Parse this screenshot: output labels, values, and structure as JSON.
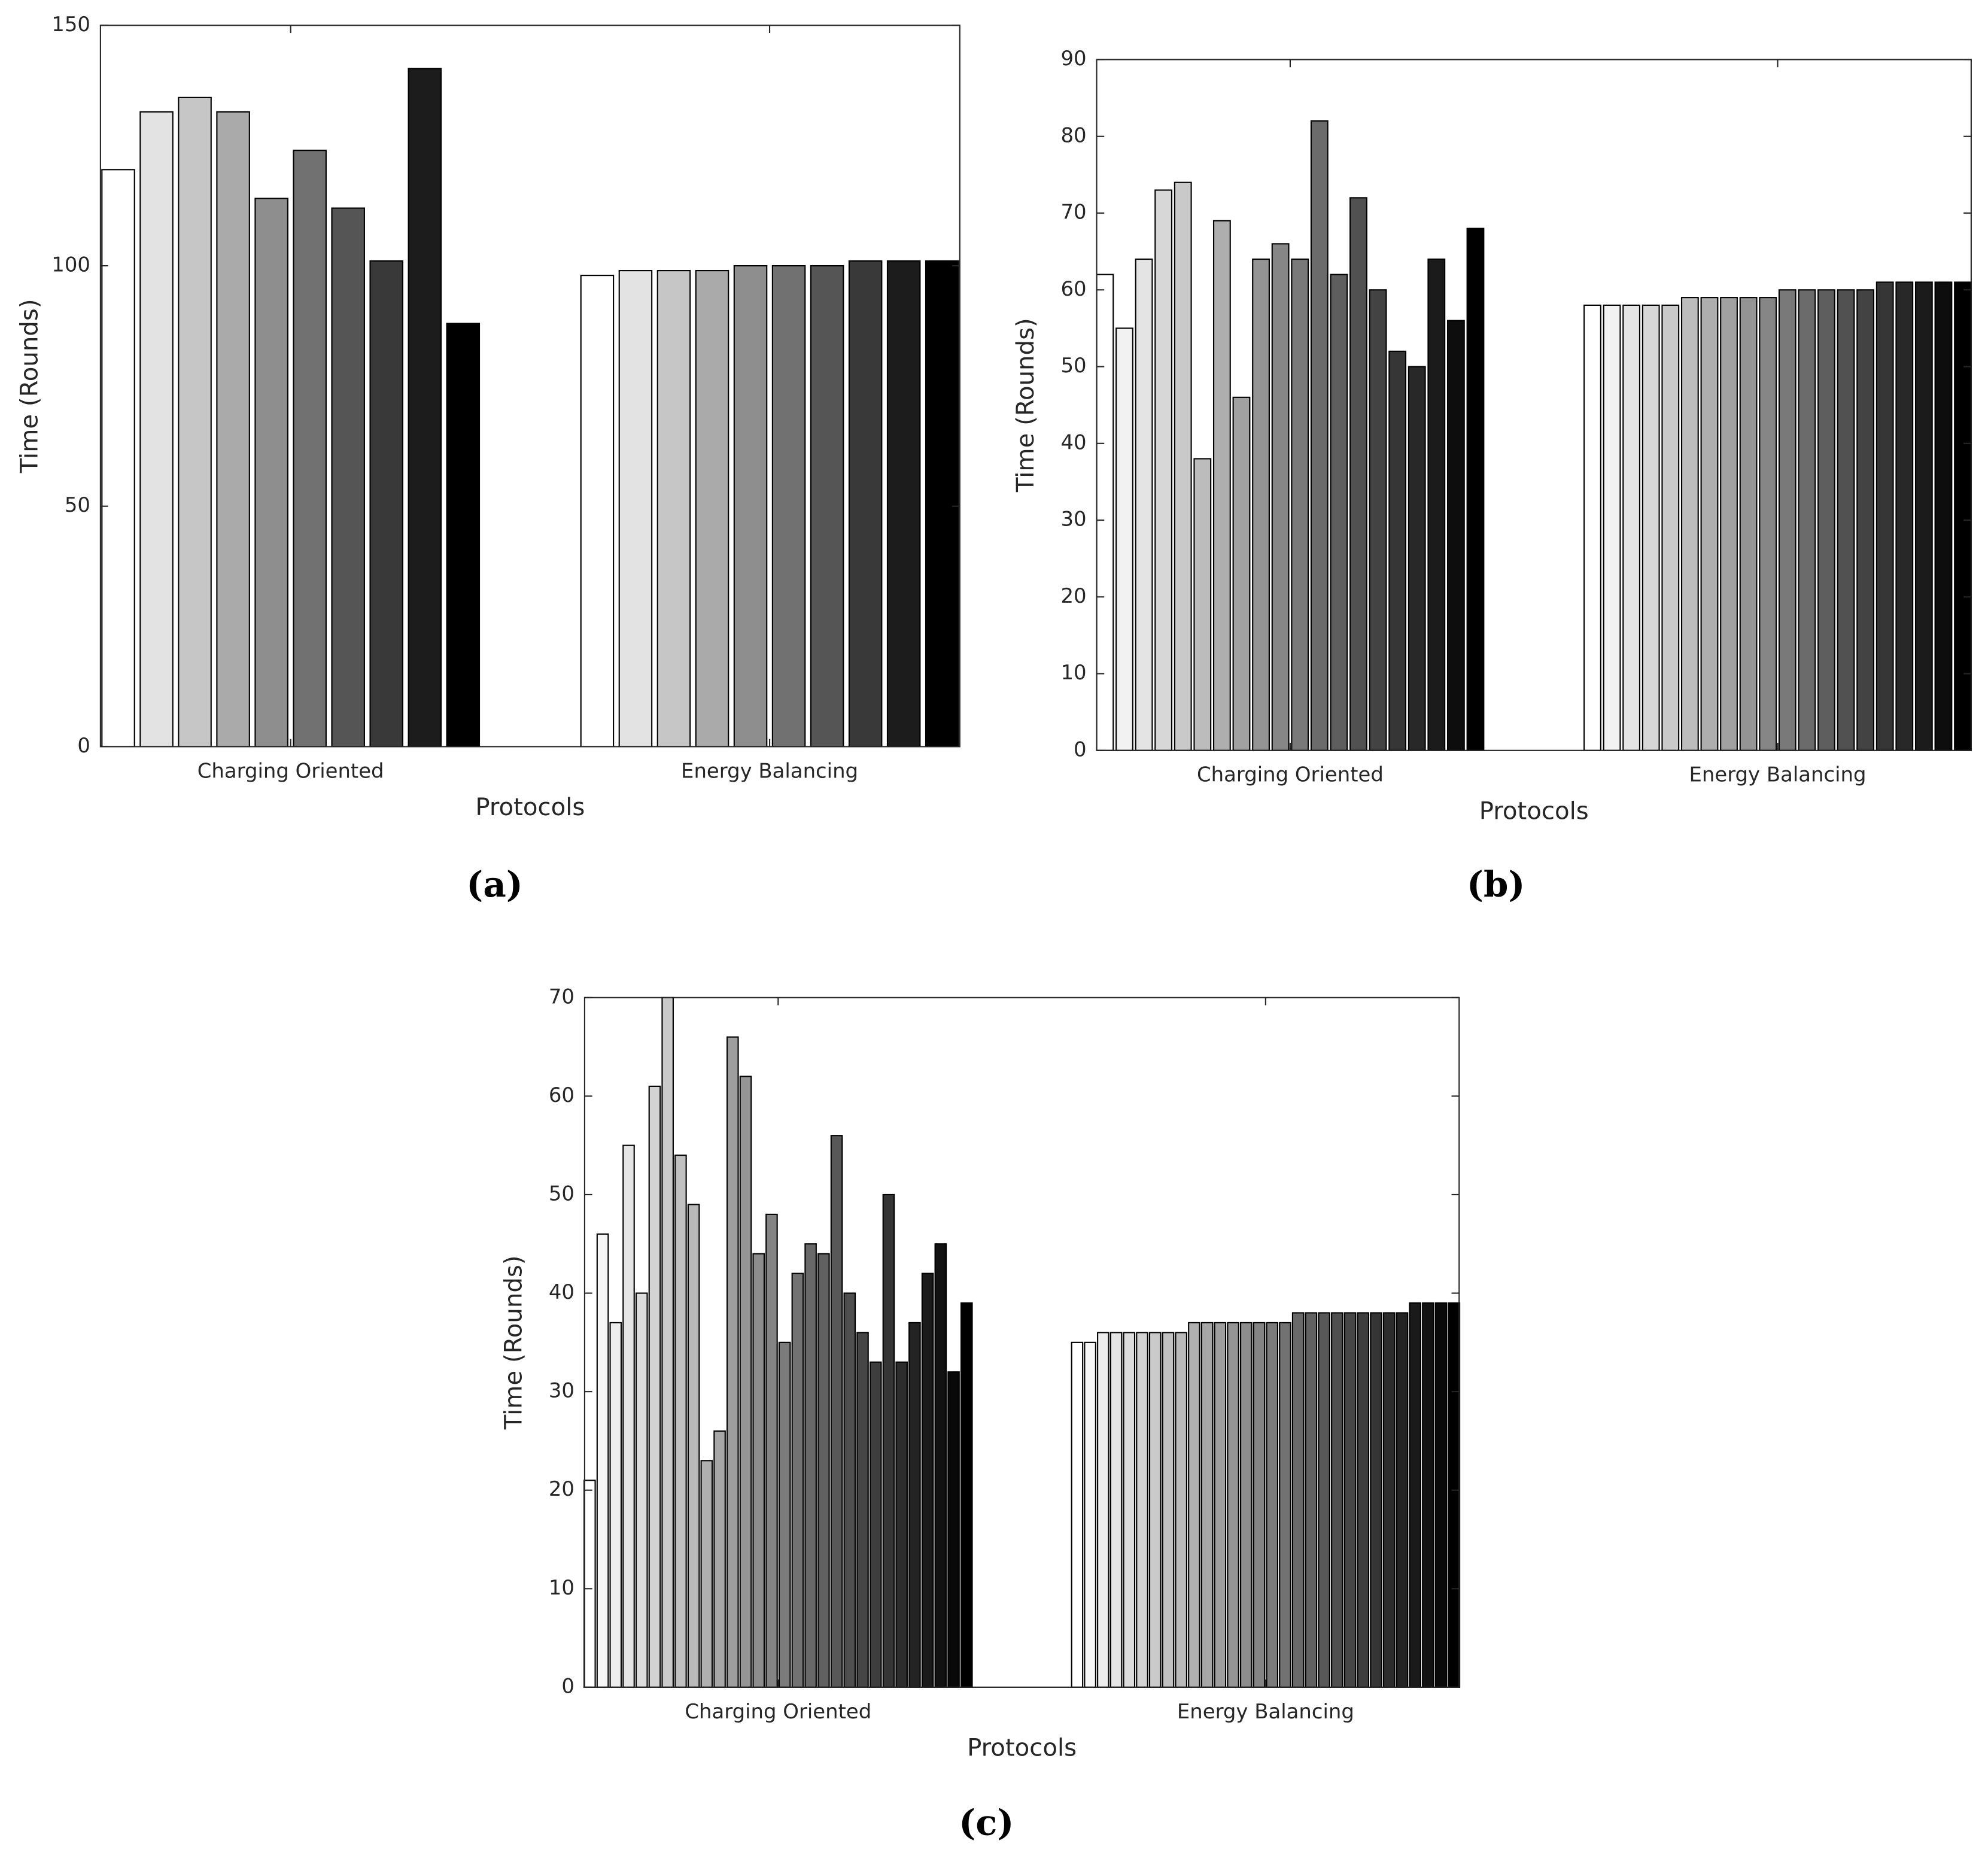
{
  "chart_data": [
    {
      "type": "bar",
      "caption": "(a)",
      "categories": [
        "Charging Oriented",
        "Energy Balancing"
      ],
      "xlabel": "Protocols",
      "ylabel": "Time (Rounds)",
      "ylim": [
        0,
        150
      ],
      "yticks": [
        0,
        50,
        100,
        150
      ],
      "series": [
        {
          "color": "#ffffff",
          "values": [
            120,
            98
          ]
        },
        {
          "color": "#e3e3e3",
          "values": [
            132,
            99
          ]
        },
        {
          "color": "#c6c6c6",
          "values": [
            135,
            99
          ]
        },
        {
          "color": "#aaaaaa",
          "values": [
            132,
            99
          ]
        },
        {
          "color": "#8e8e8e",
          "values": [
            114,
            100
          ]
        },
        {
          "color": "#717171",
          "values": [
            124,
            100
          ]
        },
        {
          "color": "#555555",
          "values": [
            112,
            100
          ]
        },
        {
          "color": "#393939",
          "values": [
            101,
            101
          ]
        },
        {
          "color": "#1c1c1c",
          "values": [
            141,
            101
          ]
        },
        {
          "color": "#000000",
          "values": [
            88,
            101
          ]
        }
      ]
    },
    {
      "type": "bar",
      "caption": "(b)",
      "categories": [
        "Charging Oriented",
        "Energy Balancing"
      ],
      "xlabel": "Protocols",
      "ylabel": "Time (Rounds)",
      "ylim": [
        0,
        90
      ],
      "yticks": [
        0,
        10,
        20,
        30,
        40,
        50,
        60,
        70,
        80,
        90
      ],
      "series": [
        {
          "color": "#ffffff",
          "values": [
            62,
            58
          ]
        },
        {
          "color": "#f2f2f2",
          "values": [
            55,
            58
          ]
        },
        {
          "color": "#e4e4e4",
          "values": [
            64,
            58
          ]
        },
        {
          "color": "#d7d7d7",
          "values": [
            73,
            58
          ]
        },
        {
          "color": "#c9c9c9",
          "values": [
            74,
            58
          ]
        },
        {
          "color": "#bcbcbc",
          "values": [
            38,
            59
          ]
        },
        {
          "color": "#aeaeae",
          "values": [
            69,
            59
          ]
        },
        {
          "color": "#a1a1a1",
          "values": [
            46,
            59
          ]
        },
        {
          "color": "#949494",
          "values": [
            64,
            59
          ]
        },
        {
          "color": "#868686",
          "values": [
            66,
            59
          ]
        },
        {
          "color": "#797979",
          "values": [
            64,
            60
          ]
        },
        {
          "color": "#6b6b6b",
          "values": [
            82,
            60
          ]
        },
        {
          "color": "#5e5e5e",
          "values": [
            62,
            60
          ]
        },
        {
          "color": "#515151",
          "values": [
            72,
            60
          ]
        },
        {
          "color": "#434343",
          "values": [
            60,
            60
          ]
        },
        {
          "color": "#363636",
          "values": [
            52,
            61
          ]
        },
        {
          "color": "#282828",
          "values": [
            50,
            61
          ]
        },
        {
          "color": "#1b1b1b",
          "values": [
            64,
            61
          ]
        },
        {
          "color": "#0d0d0d",
          "values": [
            56,
            61
          ]
        },
        {
          "color": "#000000",
          "values": [
            68,
            61
          ]
        }
      ]
    },
    {
      "type": "bar",
      "caption": "(c)",
      "categories": [
        "Charging Oriented",
        "Energy Balancing"
      ],
      "xlabel": "Protocols",
      "ylabel": "Time (Rounds)",
      "ylim": [
        0,
        70
      ],
      "yticks": [
        0,
        10,
        20,
        30,
        40,
        50,
        60,
        70
      ],
      "series": [
        {
          "color": "#ffffff",
          "values": [
            21,
            35
          ]
        },
        {
          "color": "#f6f6f6",
          "values": [
            46,
            35
          ]
        },
        {
          "color": "#ededed",
          "values": [
            37,
            36
          ]
        },
        {
          "color": "#e5e5e5",
          "values": [
            55,
            36
          ]
        },
        {
          "color": "#dcdcdc",
          "values": [
            40,
            36
          ]
        },
        {
          "color": "#d3d3d3",
          "values": [
            61,
            36
          ]
        },
        {
          "color": "#cacaca",
          "values": [
            70,
            36
          ]
        },
        {
          "color": "#c1c1c1",
          "values": [
            54,
            36
          ]
        },
        {
          "color": "#b9b9b9",
          "values": [
            49,
            36
          ]
        },
        {
          "color": "#b0b0b0",
          "values": [
            23,
            37
          ]
        },
        {
          "color": "#a7a7a7",
          "values": [
            26,
            37
          ]
        },
        {
          "color": "#9e9e9e",
          "values": [
            66,
            37
          ]
        },
        {
          "color": "#959595",
          "values": [
            62,
            37
          ]
        },
        {
          "color": "#8d8d8d",
          "values": [
            44,
            37
          ]
        },
        {
          "color": "#848484",
          "values": [
            48,
            37
          ]
        },
        {
          "color": "#7b7b7b",
          "values": [
            35,
            37
          ]
        },
        {
          "color": "#727272",
          "values": [
            42,
            37
          ]
        },
        {
          "color": "#696969",
          "values": [
            45,
            38
          ]
        },
        {
          "color": "#616161",
          "values": [
            44,
            38
          ]
        },
        {
          "color": "#585858",
          "values": [
            56,
            38
          ]
        },
        {
          "color": "#4f4f4f",
          "values": [
            40,
            38
          ]
        },
        {
          "color": "#464646",
          "values": [
            36,
            38
          ]
        },
        {
          "color": "#3e3e3e",
          "values": [
            33,
            38
          ]
        },
        {
          "color": "#353535",
          "values": [
            50,
            38
          ]
        },
        {
          "color": "#2c2c2c",
          "values": [
            33,
            38
          ]
        },
        {
          "color": "#232323",
          "values": [
            37,
            38
          ]
        },
        {
          "color": "#1a1a1a",
          "values": [
            42,
            39
          ]
        },
        {
          "color": "#121212",
          "values": [
            45,
            39
          ]
        },
        {
          "color": "#090909",
          "values": [
            32,
            39
          ]
        },
        {
          "color": "#000000",
          "values": [
            39,
            39
          ]
        }
      ]
    }
  ]
}
